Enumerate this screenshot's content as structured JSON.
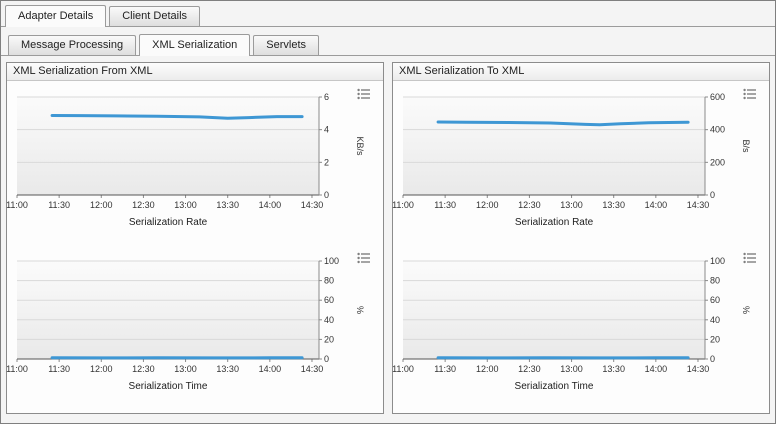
{
  "tabs_primary": [
    {
      "label": "Adapter Details",
      "active": true
    },
    {
      "label": "Client Details",
      "active": false
    }
  ],
  "tabs_secondary": [
    {
      "label": "Message Processing",
      "active": false
    },
    {
      "label": "XML Serialization",
      "active": true
    },
    {
      "label": "Servlets",
      "active": false
    }
  ],
  "panels": [
    {
      "title": "XML Serialization From XML"
    },
    {
      "title": "XML Serialization To XML"
    }
  ],
  "colors": {
    "accent": "#3e97d4",
    "grid": "#d9d9d9",
    "axis": "#8a8a8a",
    "baseline": "#555555"
  },
  "chart_data": [
    {
      "type": "line",
      "xlabel": "Serialization Rate",
      "unit": "KB/s",
      "ylim": [
        0,
        6
      ],
      "yticks": [
        0,
        2,
        4,
        6
      ],
      "x_labels": [
        "11:00",
        "11:30",
        "12:00",
        "12:30",
        "13:00",
        "13:30",
        "14:00",
        "14:30"
      ],
      "x_domain": [
        0,
        215
      ],
      "x_minutes": [
        25,
        45,
        70,
        100,
        130,
        150,
        165,
        185,
        203
      ],
      "values": [
        4.87,
        4.86,
        4.84,
        4.82,
        4.78,
        4.7,
        4.74,
        4.8,
        4.8
      ],
      "color": "#3e97d4"
    },
    {
      "type": "line",
      "xlabel": "Serialization Time",
      "unit": "%",
      "ylim": [
        0,
        100
      ],
      "yticks": [
        0,
        20,
        40,
        60,
        80,
        100
      ],
      "x_labels": [
        "11:00",
        "11:30",
        "12:00",
        "12:30",
        "13:00",
        "13:30",
        "14:00",
        "14:30"
      ],
      "x_domain": [
        0,
        215
      ],
      "x_minutes": [
        25,
        60,
        100,
        140,
        180,
        203
      ],
      "values": [
        1.2,
        1.1,
        1.2,
        1.1,
        1.2,
        1.2
      ],
      "color": "#3e97d4"
    },
    {
      "type": "line",
      "xlabel": "Serialization Rate",
      "unit": "B/s",
      "ylim": [
        0,
        600
      ],
      "yticks": [
        0,
        200,
        400,
        600
      ],
      "x_labels": [
        "11:00",
        "11:30",
        "12:00",
        "12:30",
        "13:00",
        "13:30",
        "14:00",
        "14:30"
      ],
      "x_domain": [
        0,
        215
      ],
      "x_minutes": [
        25,
        45,
        75,
        105,
        130,
        140,
        155,
        175,
        203
      ],
      "values": [
        447,
        446,
        444,
        441,
        432,
        430,
        436,
        442,
        446
      ],
      "color": "#3e97d4"
    },
    {
      "type": "line",
      "xlabel": "Serialization Time",
      "unit": "%",
      "ylim": [
        0,
        100
      ],
      "yticks": [
        0,
        20,
        40,
        60,
        80,
        100
      ],
      "x_labels": [
        "11:00",
        "11:30",
        "12:00",
        "12:30",
        "13:00",
        "13:30",
        "14:00",
        "14:30"
      ],
      "x_domain": [
        0,
        215
      ],
      "x_minutes": [
        25,
        60,
        100,
        140,
        180,
        203
      ],
      "values": [
        1.2,
        1.1,
        1.2,
        1.1,
        1.2,
        1.2
      ],
      "color": "#3e97d4"
    }
  ]
}
